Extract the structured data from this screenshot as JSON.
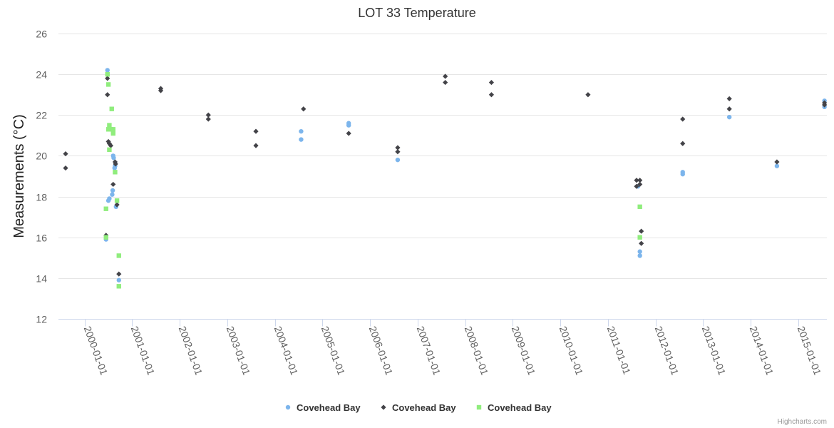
{
  "chart_data": {
    "type": "scatter",
    "title": "LOT 33 Temperature",
    "ylabel": "Measurements (°C)",
    "xlabel": "",
    "ylim": [
      12,
      26
    ],
    "yticks": [
      12,
      14,
      16,
      18,
      20,
      22,
      24,
      26
    ],
    "xlim": [
      1999.45,
      2015.6
    ],
    "xticks": [
      {
        "value": 2000,
        "label": "2000-01-01"
      },
      {
        "value": 2001,
        "label": "2001-01-01"
      },
      {
        "value": 2002,
        "label": "2002-01-01"
      },
      {
        "value": 2003,
        "label": "2003-01-01"
      },
      {
        "value": 2004,
        "label": "2004-01-01"
      },
      {
        "value": 2005,
        "label": "2005-01-01"
      },
      {
        "value": 2006,
        "label": "2006-01-01"
      },
      {
        "value": 2007,
        "label": "2007-01-01"
      },
      {
        "value": 2008,
        "label": "2008-01-01"
      },
      {
        "value": 2009,
        "label": "2009-01-01"
      },
      {
        "value": 2010,
        "label": "2010-01-01"
      },
      {
        "value": 2011,
        "label": "2011-01-01"
      },
      {
        "value": 2012,
        "label": "2012-01-01"
      },
      {
        "value": 2013,
        "label": "2013-01-01"
      },
      {
        "value": 2014,
        "label": "2014-01-01"
      },
      {
        "value": 2015,
        "label": "2015-01-01"
      }
    ],
    "legend_position": "bottom-center",
    "grid": true,
    "series": [
      {
        "name": "Covehead Bay",
        "marker": "circle",
        "color": "#7cb5ec",
        "points": [
          [
            2000.45,
            15.9
          ],
          [
            2000.48,
            24.2
          ],
          [
            2000.5,
            17.8
          ],
          [
            2000.52,
            17.9
          ],
          [
            2000.58,
            18.1
          ],
          [
            2000.59,
            18.3
          ],
          [
            2000.6,
            20.0
          ],
          [
            2000.61,
            19.9
          ],
          [
            2000.63,
            19.4
          ],
          [
            2000.64,
            19.5
          ],
          [
            2000.66,
            17.5
          ],
          [
            2000.72,
            13.9
          ],
          [
            2004.55,
            21.2
          ],
          [
            2004.55,
            20.8
          ],
          [
            2005.55,
            21.6
          ],
          [
            2005.55,
            21.5
          ],
          [
            2006.58,
            19.8
          ],
          [
            2011.63,
            18.5
          ],
          [
            2011.67,
            15.3
          ],
          [
            2011.67,
            15.1
          ],
          [
            2012.57,
            19.2
          ],
          [
            2012.57,
            19.1
          ],
          [
            2013.55,
            21.9
          ],
          [
            2014.55,
            19.5
          ],
          [
            2015.55,
            22.7
          ],
          [
            2015.55,
            22.4
          ]
        ]
      },
      {
        "name": "Covehead Bay",
        "marker": "diamond",
        "color": "#434348",
        "points": [
          [
            1999.6,
            20.1
          ],
          [
            1999.6,
            19.4
          ],
          [
            2000.45,
            16.1
          ],
          [
            2000.48,
            23.8
          ],
          [
            2000.48,
            23.0
          ],
          [
            2000.5,
            20.7
          ],
          [
            2000.52,
            20.6
          ],
          [
            2000.55,
            20.5
          ],
          [
            2000.6,
            18.6
          ],
          [
            2000.64,
            19.7
          ],
          [
            2000.65,
            19.6
          ],
          [
            2000.68,
            17.6
          ],
          [
            2000.72,
            14.2
          ],
          [
            2001.6,
            23.3
          ],
          [
            2001.6,
            23.2
          ],
          [
            2002.6,
            22.0
          ],
          [
            2002.6,
            21.8
          ],
          [
            2003.6,
            21.2
          ],
          [
            2003.6,
            20.5
          ],
          [
            2004.6,
            22.3
          ],
          [
            2005.55,
            21.1
          ],
          [
            2006.58,
            20.4
          ],
          [
            2006.58,
            20.2
          ],
          [
            2007.58,
            23.9
          ],
          [
            2007.58,
            23.6
          ],
          [
            2008.55,
            23.6
          ],
          [
            2008.55,
            23.0
          ],
          [
            2010.58,
            23.0
          ],
          [
            2011.6,
            18.8
          ],
          [
            2011.6,
            18.5
          ],
          [
            2011.67,
            18.8
          ],
          [
            2011.67,
            18.6
          ],
          [
            2011.7,
            16.3
          ],
          [
            2011.7,
            15.7
          ],
          [
            2012.57,
            21.8
          ],
          [
            2012.57,
            20.6
          ],
          [
            2013.55,
            22.8
          ],
          [
            2013.55,
            22.3
          ],
          [
            2014.55,
            19.7
          ],
          [
            2015.55,
            22.6
          ],
          [
            2015.55,
            22.5
          ]
        ]
      },
      {
        "name": "Covehead Bay",
        "marker": "square",
        "color": "#90ed7d",
        "points": [
          [
            2000.45,
            17.4
          ],
          [
            2000.45,
            16.0
          ],
          [
            2000.48,
            24.0
          ],
          [
            2000.5,
            23.5
          ],
          [
            2000.5,
            21.3
          ],
          [
            2000.52,
            21.5
          ],
          [
            2000.52,
            20.3
          ],
          [
            2000.55,
            21.3
          ],
          [
            2000.57,
            22.3
          ],
          [
            2000.6,
            21.2
          ],
          [
            2000.6,
            21.1
          ],
          [
            2000.6,
            21.3
          ],
          [
            2000.64,
            19.2
          ],
          [
            2000.68,
            17.8
          ],
          [
            2000.72,
            15.1
          ],
          [
            2000.72,
            13.6
          ],
          [
            2011.67,
            17.5
          ],
          [
            2011.67,
            16.0
          ]
        ]
      }
    ]
  },
  "credits": "Highcharts.com"
}
